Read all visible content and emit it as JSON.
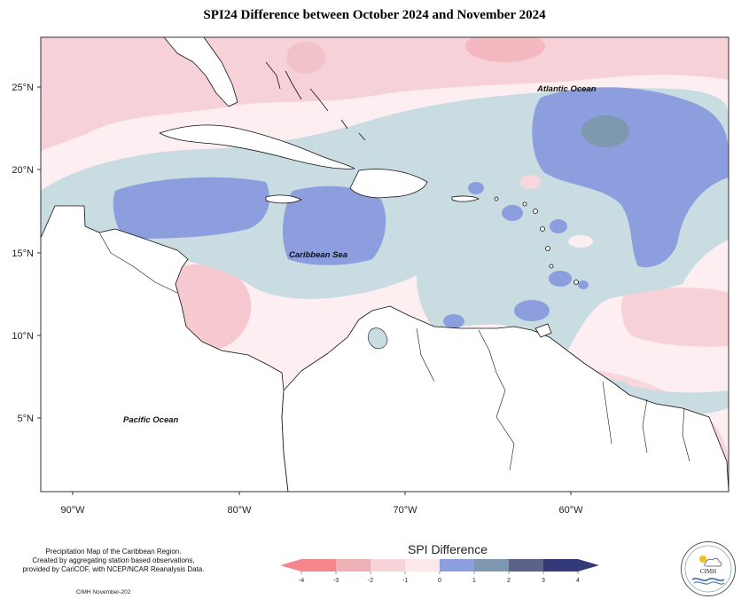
{
  "title": "SPI24 Difference between October 2024 and November 2024",
  "map": {
    "lat_labels": [
      "25°N",
      "20°N",
      "15°N",
      "10°N",
      "5°N"
    ],
    "lon_labels": [
      "90°W",
      "80°W",
      "70°W",
      "60°W"
    ],
    "ocean_labels": {
      "atlantic": "Atlantic Ocean",
      "caribbean": "Caribbean Sea",
      "pacific": "Pacific Ocean"
    }
  },
  "legend": {
    "title": "SPI Difference",
    "ticks": [
      "-4",
      "-3",
      "-2",
      "-1",
      "0",
      "1",
      "2",
      "3",
      "4"
    ],
    "colors": [
      "#f4868c",
      "#eeb2b6",
      "#f7d2d8",
      "#fce8ea",
      "#c8dce2",
      "#8c9ede",
      "#7e98b0",
      "#5c6288",
      "#343a78"
    ]
  },
  "credits": {
    "line1": "Precipitation Map of the Caribbean Region.",
    "line2": "Created by aggregating station based observations,",
    "line3": "provided by CariCOF, with NCEP/NCAR Reanalysis Data.",
    "date_line": "CIMH November-202"
  },
  "logo": {
    "name": "CIMH"
  },
  "colors": {
    "deep_pink": "#f4c8d0",
    "light_pink": "#fce6e9",
    "light_blue": "#c8dce2",
    "medium_blue": "#8c9ede",
    "dark_blue": "#7e98b0"
  }
}
